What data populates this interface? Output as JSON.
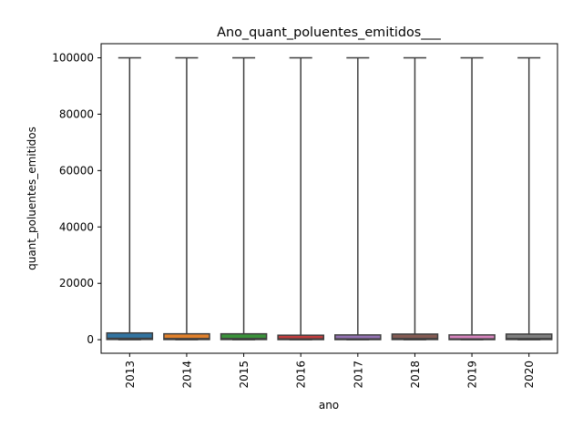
{
  "chart_data": {
    "type": "box",
    "title": "Ano_quant_poluentes_emitidos___",
    "xlabel": "ano",
    "ylabel": "quant_poluentes_emitidos",
    "ylim": [
      -4800,
      105000
    ],
    "yticks": [
      0,
      20000,
      40000,
      60000,
      80000,
      100000
    ],
    "categories": [
      "2013",
      "2014",
      "2015",
      "2016",
      "2017",
      "2018",
      "2019",
      "2020"
    ],
    "colors": [
      "#3274a1",
      "#e1812c",
      "#3a923a",
      "#c03d3e",
      "#9372b2",
      "#845b53",
      "#d684bd",
      "#7f7f7f"
    ],
    "boxes": [
      {
        "whisker_low": 0,
        "q1": 80,
        "median": 500,
        "q3": 2400,
        "whisker_high": 100000
      },
      {
        "whisker_low": 0,
        "q1": 60,
        "median": 400,
        "q3": 2100,
        "whisker_high": 100000
      },
      {
        "whisker_low": 0,
        "q1": 60,
        "median": 400,
        "q3": 2100,
        "whisker_high": 100000
      },
      {
        "whisker_low": 0,
        "q1": 40,
        "median": 300,
        "q3": 1600,
        "whisker_high": 100000
      },
      {
        "whisker_low": 0,
        "q1": 40,
        "median": 300,
        "q3": 1700,
        "whisker_high": 100000
      },
      {
        "whisker_low": 0,
        "q1": 60,
        "median": 400,
        "q3": 2000,
        "whisker_high": 100000
      },
      {
        "whisker_low": 0,
        "q1": 40,
        "median": 300,
        "q3": 1700,
        "whisker_high": 100000
      },
      {
        "whisker_low": 0,
        "q1": 60,
        "median": 400,
        "q3": 2000,
        "whisker_high": 100000
      }
    ],
    "grid": false,
    "legend": "none"
  }
}
